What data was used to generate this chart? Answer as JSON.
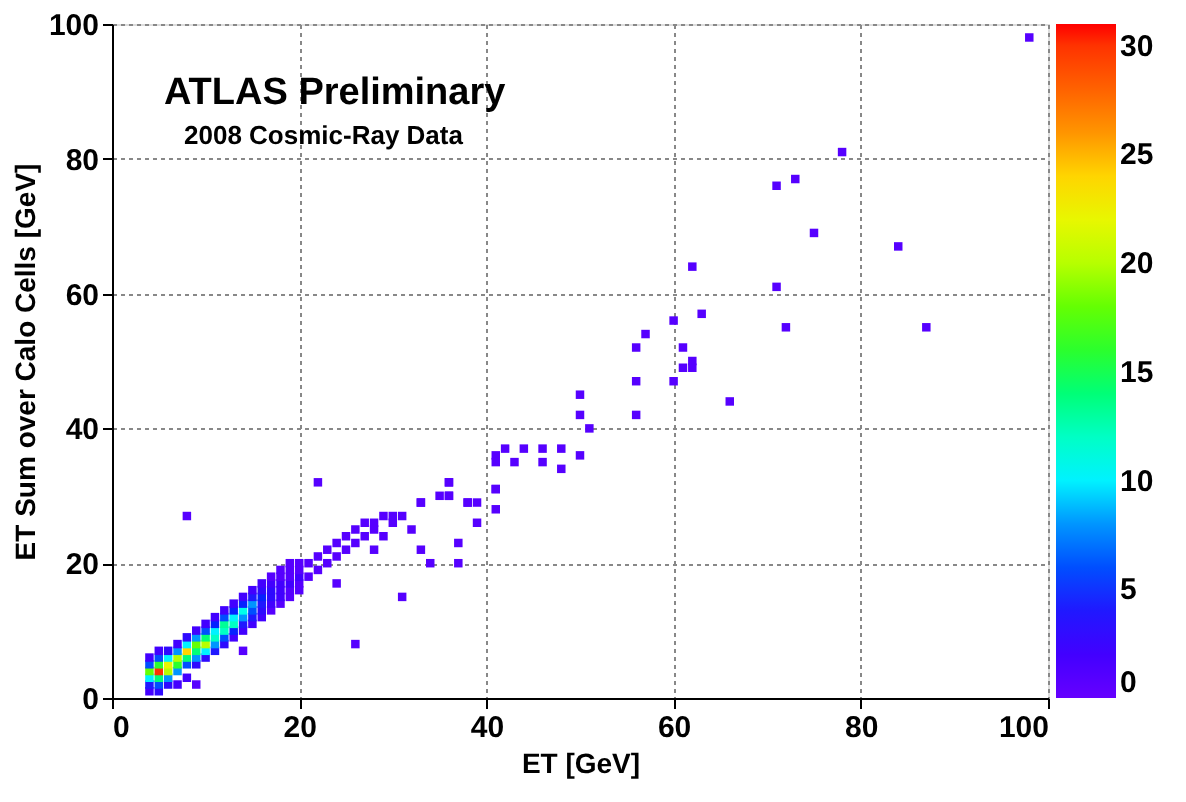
{
  "chart_data": {
    "type": "scatter",
    "title": "ATLAS Preliminary",
    "subtitle": "2008 Cosmic-Ray Data",
    "xlabel": "ET [GeV]",
    "ylabel": "ET Sum over Calo Cells [GeV]",
    "xlim": [
      0,
      100
    ],
    "ylim": [
      0,
      100
    ],
    "xticks": [
      0,
      20,
      40,
      60,
      80,
      100
    ],
    "yticks": [
      0,
      20,
      40,
      60,
      80,
      100
    ],
    "clim": [
      0,
      31
    ],
    "cticks": [
      0,
      5,
      10,
      15,
      20,
      25,
      30
    ],
    "grid": true,
    "marker": "square",
    "series": [
      {
        "x": [
          4,
          4,
          4,
          4,
          4,
          4,
          5,
          5,
          5,
          5,
          5,
          5,
          5,
          6,
          6,
          6,
          6,
          6,
          6,
          7,
          7,
          7,
          7,
          7,
          7,
          8,
          8,
          8,
          8,
          8,
          8,
          9,
          9,
          9,
          9,
          9,
          9,
          9,
          10,
          10,
          10,
          10,
          10,
          10,
          11,
          11,
          11,
          11,
          11,
          11,
          12,
          12,
          12,
          12,
          12,
          12,
          13,
          13,
          13,
          13,
          13,
          13,
          14,
          14,
          14,
          14,
          14,
          14,
          14,
          15,
          15,
          15,
          15,
          15,
          15,
          16,
          16,
          16,
          16,
          16,
          16,
          17,
          17,
          17,
          17,
          17,
          17,
          18,
          18,
          18,
          18,
          18,
          18,
          19,
          19,
          19,
          19,
          19,
          19,
          20,
          20,
          20,
          20,
          20,
          21,
          21,
          22,
          22,
          23,
          23,
          24,
          24,
          25,
          25,
          26,
          26,
          27,
          27,
          28,
          28,
          29,
          29,
          30,
          30,
          31,
          32,
          33,
          34,
          26,
          22,
          8,
          31,
          24,
          28,
          36,
          37,
          37,
          38,
          39,
          41,
          41,
          36,
          33,
          98,
          78,
          71,
          73,
          75,
          84,
          62,
          71,
          63,
          60,
          57,
          56,
          72,
          87,
          61,
          62,
          62,
          61,
          56,
          60,
          66,
          50,
          50,
          56,
          51,
          42,
          44,
          41,
          43,
          46,
          48,
          46,
          48,
          50,
          41,
          41,
          36,
          35,
          36,
          38,
          39,
          33
        ],
        "values": [
          1,
          2,
          3,
          4,
          5,
          6,
          1,
          2,
          3,
          4,
          5,
          6,
          7,
          2,
          3,
          4,
          5,
          6,
          7,
          2,
          4,
          5,
          6,
          7,
          8,
          3,
          5,
          6,
          7,
          8,
          9,
          2,
          5,
          6,
          7,
          8,
          9,
          10,
          6,
          7,
          8,
          9,
          10,
          11,
          7,
          8,
          9,
          10,
          11,
          12,
          8,
          9,
          10,
          11,
          12,
          13,
          9,
          10,
          11,
          12,
          13,
          14,
          10,
          11,
          12,
          13,
          14,
          15,
          7,
          11,
          12,
          13,
          14,
          15,
          16,
          12,
          13,
          14,
          15,
          16,
          17,
          13,
          14,
          15,
          16,
          17,
          18,
          14,
          15,
          16,
          17,
          18,
          19,
          15,
          16,
          17,
          18,
          19,
          20,
          16,
          17,
          18,
          19,
          20,
          18,
          20,
          19,
          21,
          20,
          22,
          21,
          23,
          22,
          24,
          23,
          25,
          24,
          26,
          25,
          26,
          24,
          27,
          26,
          27,
          27,
          25,
          22,
          20,
          8,
          32,
          27,
          15,
          17,
          22,
          30,
          23,
          20,
          29,
          26,
          31,
          28,
          32,
          29,
          98,
          81,
          76,
          77,
          69,
          67,
          64,
          61,
          57,
          56,
          54,
          52,
          55,
          55,
          52,
          50,
          49,
          49,
          47,
          47,
          44,
          45,
          42,
          42,
          40,
          37,
          37,
          36,
          35,
          37,
          37,
          35,
          34,
          36,
          35,
          31,
          32,
          30,
          30,
          29,
          29,
          29
        ],
        "cvalues": [
          2,
          4,
          10,
          18,
          6,
          2,
          3,
          6,
          14,
          30,
          16,
          6,
          2,
          3,
          8,
          20,
          22,
          10,
          3,
          2,
          8,
          16,
          20,
          8,
          2,
          2,
          6,
          14,
          24,
          10,
          3,
          1,
          3,
          8,
          14,
          18,
          8,
          2,
          3,
          10,
          20,
          14,
          6,
          2,
          4,
          8,
          12,
          10,
          5,
          2,
          3,
          6,
          12,
          13,
          6,
          2,
          2,
          5,
          12,
          10,
          5,
          2,
          2,
          4,
          8,
          11,
          5,
          2,
          1,
          2,
          4,
          6,
          8,
          4,
          2,
          2,
          3,
          4,
          5,
          3,
          2,
          1,
          2,
          3,
          3,
          2,
          1,
          1,
          2,
          2,
          2,
          1,
          1,
          1,
          1,
          2,
          1,
          1,
          1,
          1,
          1,
          2,
          1,
          1,
          1,
          1,
          1,
          1,
          1,
          1,
          1,
          1,
          1,
          1,
          1,
          1,
          1,
          1,
          1,
          1,
          1,
          1,
          1,
          1,
          1,
          1,
          1,
          1,
          1,
          1,
          1,
          1,
          1,
          1,
          1,
          1,
          1,
          1,
          1,
          1,
          1,
          1,
          1,
          1,
          1,
          1,
          1,
          1,
          1,
          1,
          1,
          1,
          1,
          1,
          1,
          1,
          1,
          1,
          1,
          1,
          1,
          1,
          1,
          1,
          1,
          1,
          1,
          1,
          1,
          1,
          1,
          1,
          1,
          1,
          1,
          1,
          1,
          1,
          1,
          1,
          1,
          1,
          1,
          1,
          1
        ]
      }
    ]
  }
}
